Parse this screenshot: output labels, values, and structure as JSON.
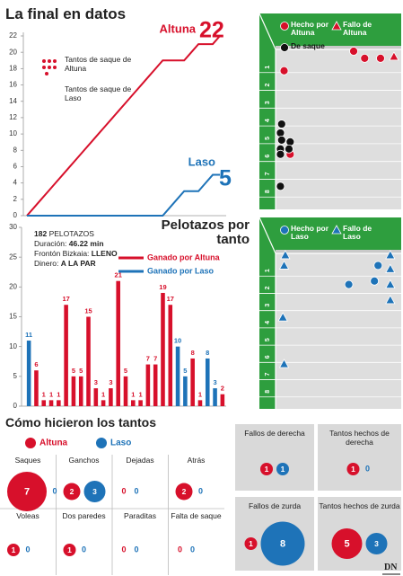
{
  "title": "La final en datos",
  "chart_data": [
    {
      "type": "line",
      "series": [
        {
          "name": "Altuna",
          "color": "#d7102b",
          "values": [
            0,
            1,
            2,
            3,
            4,
            5,
            6,
            7,
            8,
            9,
            10,
            11,
            12,
            13,
            14,
            15,
            16,
            17,
            18,
            19,
            19,
            19,
            19,
            20,
            21,
            21,
            21,
            22
          ]
        },
        {
          "name": "Laso",
          "color": "#1e73b8",
          "values": [
            0,
            0,
            0,
            0,
            0,
            0,
            0,
            0,
            0,
            0,
            0,
            0,
            0,
            0,
            0,
            0,
            0,
            0,
            0,
            0,
            1,
            2,
            3,
            3,
            3,
            4,
            5,
            5
          ]
        }
      ],
      "annotations": [
        "Tantos de saque de Altuna",
        "Tantos de saque de Laso"
      ],
      "ylim": [
        0,
        22
      ],
      "yticks": [
        0,
        2,
        4,
        6,
        8,
        10,
        12,
        14,
        16,
        18,
        20,
        22
      ]
    },
    {
      "type": "bar",
      "title": "Pelotazos por tanto",
      "stats": [
        [
          "182",
          "PELOTAZOS"
        ],
        [
          "Duración:",
          "46.22 min"
        ],
        [
          "Frontón Bizkaia:",
          "LLENO"
        ],
        [
          "Dinero:",
          "A LA PAR"
        ]
      ],
      "series": [
        {
          "name": "Ganado por Altuna",
          "color": "#d7102b",
          "values": [
            null,
            6,
            1,
            1,
            1,
            17,
            5,
            5,
            15,
            3,
            1,
            3,
            21,
            5,
            1,
            1,
            7,
            7,
            19,
            17,
            null,
            null,
            8,
            1,
            null,
            null,
            2
          ]
        },
        {
          "name": "Ganado por Laso",
          "color": "#1e73b8",
          "values": [
            11,
            null,
            null,
            null,
            null,
            null,
            null,
            null,
            null,
            null,
            null,
            null,
            null,
            null,
            null,
            null,
            null,
            null,
            null,
            null,
            10,
            5,
            null,
            null,
            8,
            3,
            null
          ]
        }
      ],
      "ylim": [
        0,
        30
      ],
      "yticks": [
        0,
        5,
        10,
        15,
        20,
        25,
        30
      ]
    },
    {
      "type": "scatter",
      "series": [
        {
          "name": "Hecho por Altuna",
          "color": "#d7102b",
          "marker": "circle",
          "x": [
            0.7,
            6.4,
            7.3,
            8.6,
            1.2
          ],
          "y": [
            1.2,
            0.1,
            0.5,
            0.5,
            5.9
          ]
        },
        {
          "name": "Fallo de Altuna",
          "color": "#d7102b",
          "marker": "triangle",
          "x": [
            9.7
          ],
          "y": [
            0.4
          ]
        },
        {
          "name": "De saque",
          "color": "#111111",
          "marker": "circle",
          "x": [
            0.5,
            0.4,
            0.5,
            1.2,
            0.4,
            1.1,
            0.4,
            0.4
          ],
          "y": [
            4.2,
            4.7,
            5.1,
            5.2,
            5.6,
            5.6,
            5.9,
            7.7
          ]
        }
      ],
      "xlim": [
        0,
        10
      ],
      "ylim": [
        0,
        9
      ],
      "yticks": [
        1,
        2,
        3,
        4,
        5,
        6,
        7,
        8
      ]
    },
    {
      "type": "scatter",
      "series": [
        {
          "name": "Hecho por Laso",
          "color": "#1e73b8",
          "marker": "circle",
          "x": [
            6.0,
            8.4,
            8.1
          ],
          "y": [
            1.8,
            0.7,
            1.6
          ]
        },
        {
          "name": "Fallo de Laso",
          "color": "#1e73b8",
          "marker": "triangle",
          "x": [
            0.8,
            0.7,
            9.4,
            9.4,
            9.4,
            9.4,
            0.6,
            0.7
          ],
          "y": [
            0.1,
            0.7,
            0.1,
            0.9,
            1.8,
            2.7,
            3.7,
            6.4
          ]
        }
      ],
      "xlim": [
        0,
        10
      ],
      "ylim": [
        0,
        9
      ],
      "yticks": [
        1,
        2,
        3,
        4,
        5,
        6,
        7,
        8
      ]
    }
  ],
  "how": {
    "title": "Cómo hicieron los tantos",
    "legend": [
      {
        "name": "Altuna",
        "color": "#d7102b"
      },
      {
        "name": "Laso",
        "color": "#1e73b8"
      }
    ],
    "cells": [
      {
        "label": "Saques",
        "values": [
          7,
          0
        ]
      },
      {
        "label": "Ganchos",
        "values": [
          2,
          3
        ]
      },
      {
        "label": "Dejadas",
        "values": [
          0,
          0
        ]
      },
      {
        "label": "Atrás",
        "values": [
          2,
          0
        ]
      },
      {
        "label": "Voleas",
        "values": [
          1,
          0
        ]
      },
      {
        "label": "Dos paredes",
        "values": [
          1,
          0
        ]
      },
      {
        "label": "Paraditas",
        "values": [
          0,
          0
        ]
      },
      {
        "label": "Falta de saque",
        "values": [
          0,
          0
        ]
      }
    ]
  },
  "boxes": [
    {
      "label": "Fallos de derecha",
      "values": [
        1,
        1
      ]
    },
    {
      "label": "Tantos hechos de derecha",
      "values": [
        1,
        0
      ]
    },
    {
      "label": "Fallos de zurda",
      "values": [
        1,
        8
      ]
    },
    {
      "label": "Tantos hechos de zurda",
      "values": [
        5,
        3
      ]
    }
  ],
  "logo": "DN"
}
